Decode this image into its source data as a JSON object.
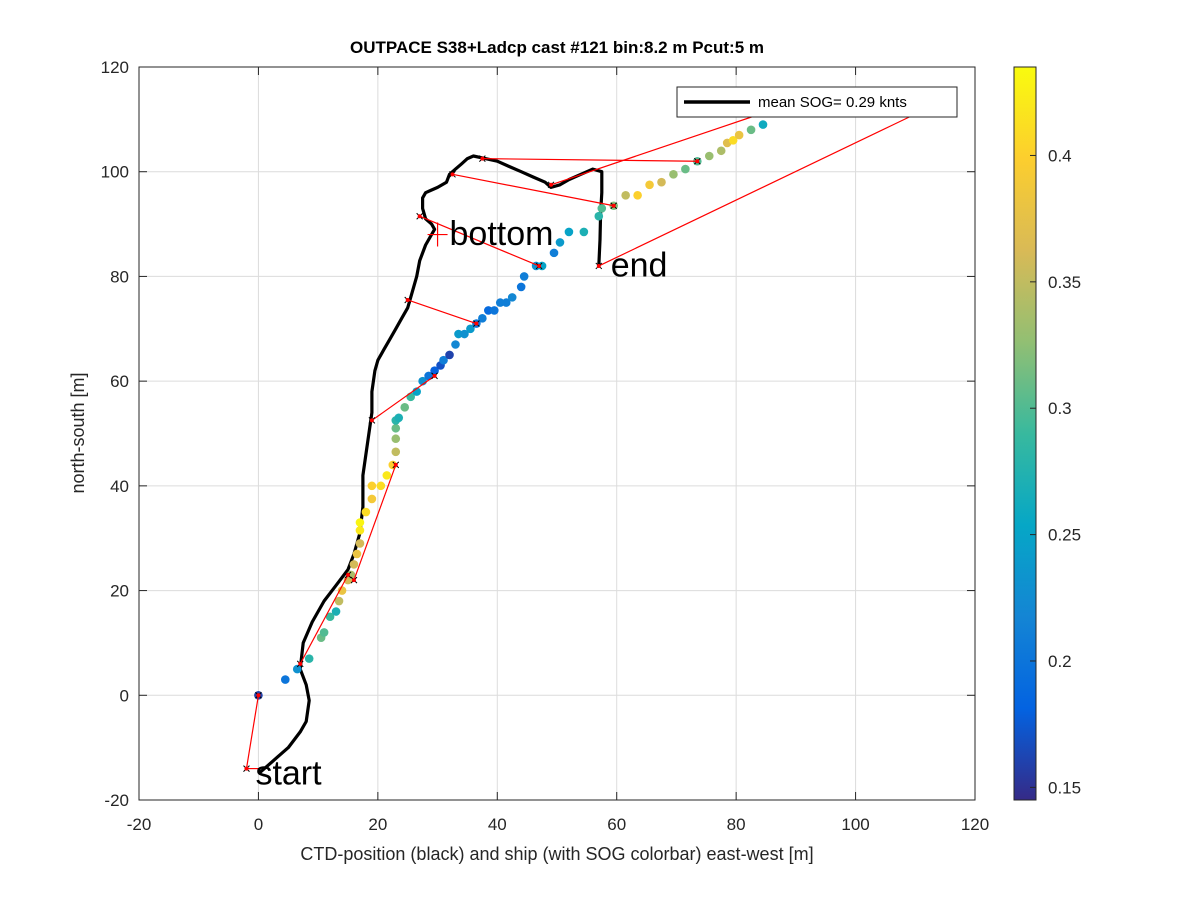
{
  "chart_data": {
    "type": "scatter",
    "title": "OUTPACE S38+Ladcp cast #121 bin:8.2 m  Pcut:5 m",
    "xlabel": "CTD-position (black) and ship (with SOG colorbar) east-west [m]",
    "ylabel": "north-south [m]",
    "xlim": [
      -20,
      120
    ],
    "ylim": [
      -20,
      120
    ],
    "xticks": [
      "-20",
      "0",
      "20",
      "40",
      "60",
      "80",
      "100",
      "120"
    ],
    "yticks": [
      "-20",
      "0",
      "20",
      "40",
      "60",
      "80",
      "100",
      "120"
    ],
    "grid": true,
    "legend": {
      "label": "mean SOG=  0.29 knts",
      "placement": "top-right"
    },
    "colorbar": {
      "range": [
        0.145,
        0.435
      ],
      "ticks": [
        "0.15",
        "0.2",
        "0.25",
        "0.3",
        "0.35",
        "0.4"
      ],
      "colormap": [
        "#352a87",
        "#0363e1",
        "#1485d4",
        "#06a7c6",
        "#38b99e",
        "#92bf73",
        "#d9ba56",
        "#fcce2e",
        "#f9fb0e"
      ]
    },
    "annotations": {
      "start": "start",
      "bottom": "bottom",
      "end": "end"
    },
    "series": [
      {
        "kind": "ctd_track",
        "color": "#000000",
        "x": [
          0,
          1,
          3,
          5,
          7,
          8,
          8.5,
          8,
          7,
          7.5,
          9,
          11,
          13,
          15,
          16,
          17,
          17.5,
          17.5,
          18,
          18.5,
          19,
          19,
          19.5,
          20,
          21,
          22,
          23,
          24,
          25,
          25.5,
          26,
          26.5,
          27,
          28,
          29,
          29.5,
          29,
          28,
          27.5,
          27.5,
          28,
          29,
          30,
          31.5,
          32,
          33,
          34,
          35,
          36,
          38,
          40,
          42,
          44,
          46,
          48,
          49,
          50.5,
          52,
          54,
          56,
          57.5,
          57.5,
          57.3,
          57.2,
          57
        ],
        "y": [
          -15,
          -14,
          -12,
          -10,
          -7,
          -5,
          -1,
          2,
          5,
          10,
          14,
          18,
          21,
          24,
          27,
          31,
          36,
          42,
          46,
          50,
          54,
          58,
          62,
          64,
          66,
          68,
          70,
          72,
          74,
          76,
          78,
          80,
          83,
          86,
          88,
          89,
          90,
          91,
          93,
          95,
          96,
          96.5,
          97,
          98,
          99.5,
          100.5,
          101.5,
          102.5,
          103,
          102.5,
          102,
          101,
          100,
          99,
          98,
          97,
          97.5,
          98.5,
          99.5,
          100.5,
          100,
          96,
          92,
          87,
          82
        ]
      },
      {
        "kind": "ship_sog",
        "x": [
          0,
          4.5,
          6.5,
          8.5,
          10.5,
          11,
          12,
          13,
          13.5,
          14,
          15,
          15.5,
          16,
          16.5,
          17,
          17,
          17,
          18,
          19,
          19,
          20.5,
          21.5,
          22.5,
          23,
          23,
          23,
          23,
          23.5,
          24.5,
          25.5,
          26.5,
          27.5,
          28.5,
          29.5,
          30.5,
          31,
          32,
          33,
          33.5,
          34.5,
          35.5,
          36.5,
          37.5,
          38.5,
          39.5,
          40.5,
          41.5,
          42.5,
          44,
          44.5,
          46.5,
          47.5,
          49.5,
          50.5,
          52,
          54.5,
          57,
          57.5,
          59.5,
          61.5,
          63.5,
          65.5,
          67.5,
          69.5,
          71.5,
          73.5,
          75.5,
          77.5,
          78.5,
          79.5,
          80.5,
          82.5,
          84.5
        ],
        "y": [
          0,
          3,
          5,
          7,
          11,
          12,
          15,
          16,
          18,
          20,
          22,
          23,
          25,
          27,
          29,
          31.5,
          33,
          35,
          37.5,
          40,
          40,
          42,
          44,
          46.5,
          49,
          51,
          52.5,
          53,
          55,
          57,
          58,
          60,
          61,
          62,
          63,
          64,
          65,
          67,
          69,
          69,
          70,
          71,
          72,
          73.5,
          73.5,
          75,
          75,
          76,
          78,
          80,
          82,
          82,
          84.5,
          86.5,
          88.5,
          88.5,
          91.5,
          93,
          93.5,
          95.5,
          95.5,
          97.5,
          98,
          99.5,
          100.5,
          102,
          103,
          104,
          105.5,
          106,
          107,
          108,
          109
        ],
        "v": [
          0.16,
          0.2,
          0.23,
          0.28,
          0.31,
          0.3,
          0.29,
          0.27,
          0.35,
          0.38,
          0.36,
          0.34,
          0.36,
          0.38,
          0.36,
          0.42,
          0.43,
          0.41,
          0.39,
          0.4,
          0.41,
          0.42,
          0.4,
          0.35,
          0.33,
          0.31,
          0.28,
          0.27,
          0.31,
          0.29,
          0.25,
          0.23,
          0.2,
          0.18,
          0.17,
          0.21,
          0.16,
          0.22,
          0.24,
          0.23,
          0.24,
          0.2,
          0.21,
          0.19,
          0.2,
          0.21,
          0.21,
          0.22,
          0.2,
          0.21,
          0.23,
          0.25,
          0.21,
          0.24,
          0.25,
          0.27,
          0.28,
          0.3,
          0.32,
          0.35,
          0.4,
          0.39,
          0.36,
          0.33,
          0.31,
          0.3,
          0.33,
          0.34,
          0.37,
          0.41,
          0.38,
          0.31,
          0.26
        ]
      },
      {
        "kind": "connectors",
        "color": "#ff0000",
        "segments": [
          [
            [
              0,
              0
            ],
            [
              -2,
              -14
            ]
          ],
          [
            [
              -2,
              -14
            ],
            [
              0,
              -14
            ]
          ],
          [
            [
              7,
              6
            ],
            [
              15,
              23
            ]
          ],
          [
            [
              16,
              22
            ],
            [
              23,
              44
            ]
          ],
          [
            [
              19,
              52.5
            ],
            [
              29.5,
              61
            ]
          ],
          [
            [
              25,
              75.5
            ],
            [
              36.5,
              71
            ]
          ],
          [
            [
              27,
              91.5
            ],
            [
              47,
              82
            ]
          ],
          [
            [
              32.5,
              99.5
            ],
            [
              59.5,
              93.5
            ]
          ],
          [
            [
              37.5,
              102.5
            ],
            [
              73.5,
              102
            ]
          ],
          [
            [
              49,
              97.5
            ],
            [
              84,
              111
            ]
          ],
          [
            [
              57,
              82
            ],
            [
              110,
              111
            ]
          ]
        ],
        "markers": [
          [
            0,
            0
          ],
          [
            -2,
            -14
          ],
          [
            7,
            6
          ],
          [
            15,
            23
          ],
          [
            16,
            22
          ],
          [
            23,
            44
          ],
          [
            19,
            52.5
          ],
          [
            29.5,
            61
          ],
          [
            25,
            75.5
          ],
          [
            36.5,
            71
          ],
          [
            27,
            91.5
          ],
          [
            47,
            82
          ],
          [
            32.5,
            99.5
          ],
          [
            59.5,
            93.5
          ],
          [
            37.5,
            102.5
          ],
          [
            73.5,
            102
          ],
          [
            49,
            97.5
          ],
          [
            57,
            82
          ]
        ]
      }
    ]
  }
}
